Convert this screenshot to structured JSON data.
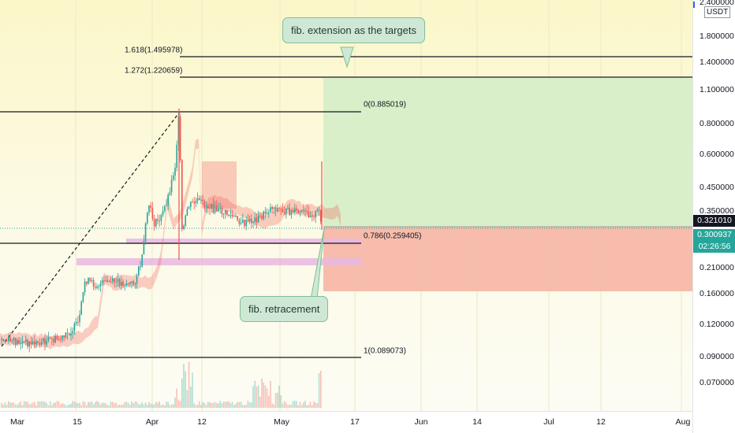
{
  "axis": {
    "currency": "USDT",
    "price_ticks": [
      "1.800000",
      "1.400000",
      "1.100000",
      "0.800000",
      "0.600000",
      "0.450000",
      "0.350000",
      "0.210000",
      "0.160000",
      "0.120000",
      "0.090000",
      "0.070000"
    ],
    "top_partial_tick": "2.400000",
    "time_ticks": [
      "Mar",
      "15",
      "Apr",
      "12",
      "May",
      "17",
      "Jun",
      "14",
      "Jul",
      "12",
      "Aug"
    ]
  },
  "price_tags": {
    "last_price": "0.321010",
    "current_price": "0.300937",
    "countdown": "02:26:56"
  },
  "fib_levels": [
    {
      "label": "1.618(1.495978)"
    },
    {
      "label": "1.272(1.220659)"
    },
    {
      "label": "0(0.885019)"
    },
    {
      "label": "0.786(0.259405)"
    },
    {
      "label": "1(0.089073)"
    }
  ],
  "annotations": {
    "targets": "fib. extension as the targets",
    "retracement": "fib. retracement"
  },
  "colors": {
    "bull": "#26a69a",
    "bear": "#ef5350",
    "target_zone": "#d7eec8",
    "stop_zone": "#f7b8a8",
    "support_band": "#e8b7e0",
    "future_bg": "#fdfbe6",
    "history_bg": "#fbf8d6",
    "price_tag": "#131722",
    "current_tag": "#26a69a"
  }
}
